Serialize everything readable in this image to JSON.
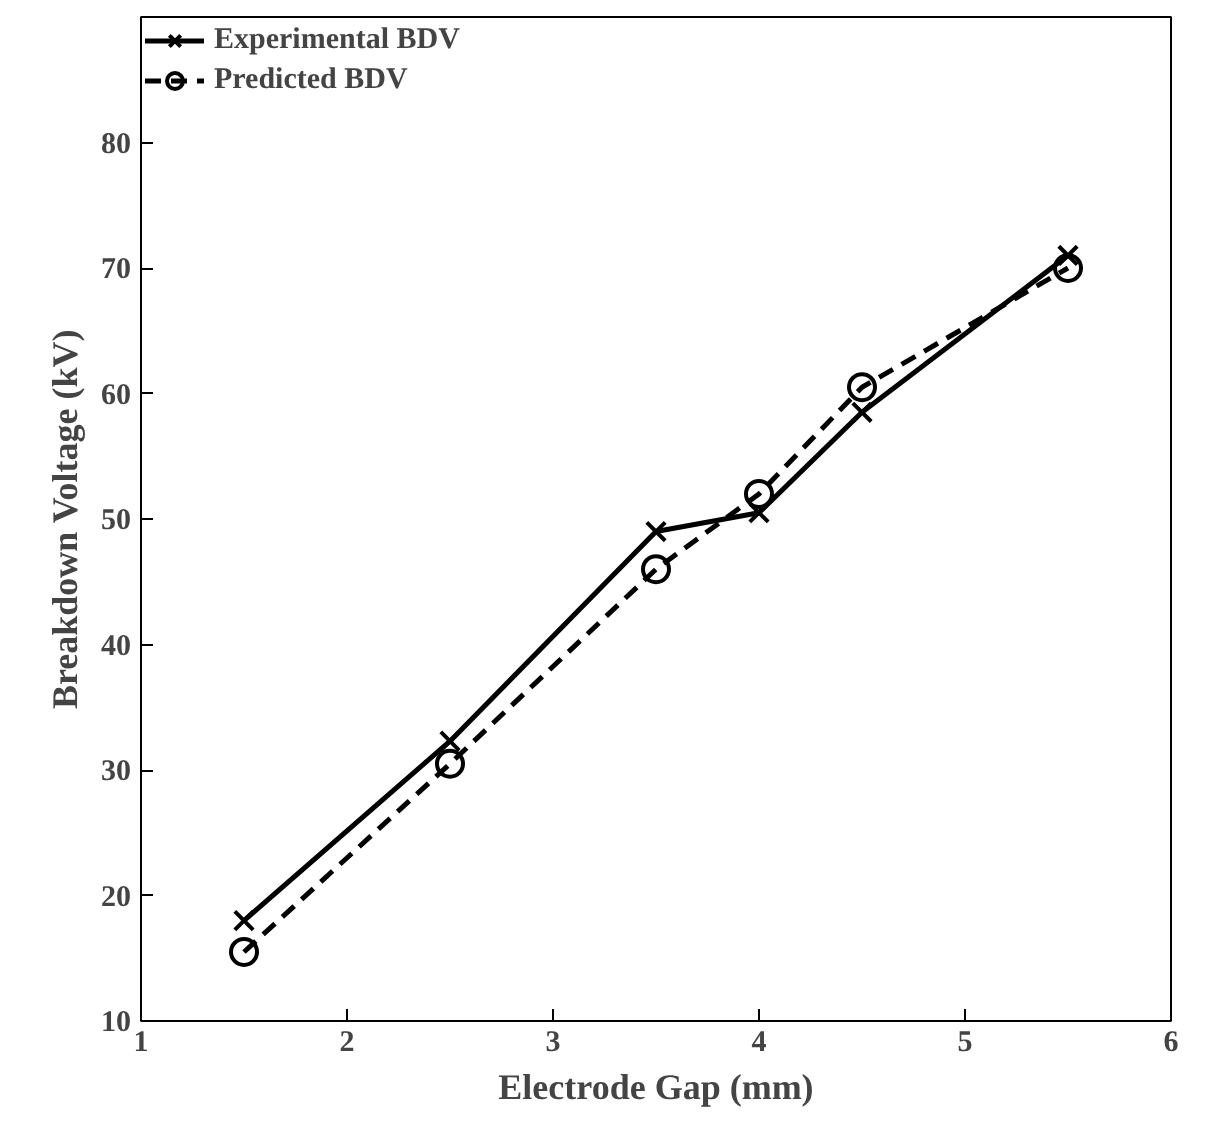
{
  "chart_data": {
    "type": "line",
    "xlabel": "Electrode Gap (mm)",
    "ylabel": "Breakdown Voltage (kV)",
    "x": [
      1.5,
      2.5,
      3.5,
      4,
      4.5,
      5.5
    ],
    "series": [
      {
        "name": "Experimental BDV",
        "color": "#000000",
        "values": [
          18,
          32.3,
          49,
          50.5,
          58.5,
          71
        ],
        "marker": "cross",
        "line_style": "solid"
      },
      {
        "name": "Predicted BDV",
        "color": "#000000",
        "values": [
          15.5,
          30.5,
          46,
          52,
          60.5,
          70
        ],
        "marker": "circle",
        "line_style": "dashed"
      }
    ],
    "xlim": [
      1,
      6
    ],
    "xticks": [
      1,
      2,
      3,
      4,
      5,
      6
    ],
    "ylim": [
      10,
      90
    ],
    "yticks": [
      10,
      20,
      30,
      40,
      50,
      60,
      70,
      80
    ],
    "grid": false,
    "legend": "top left"
  }
}
